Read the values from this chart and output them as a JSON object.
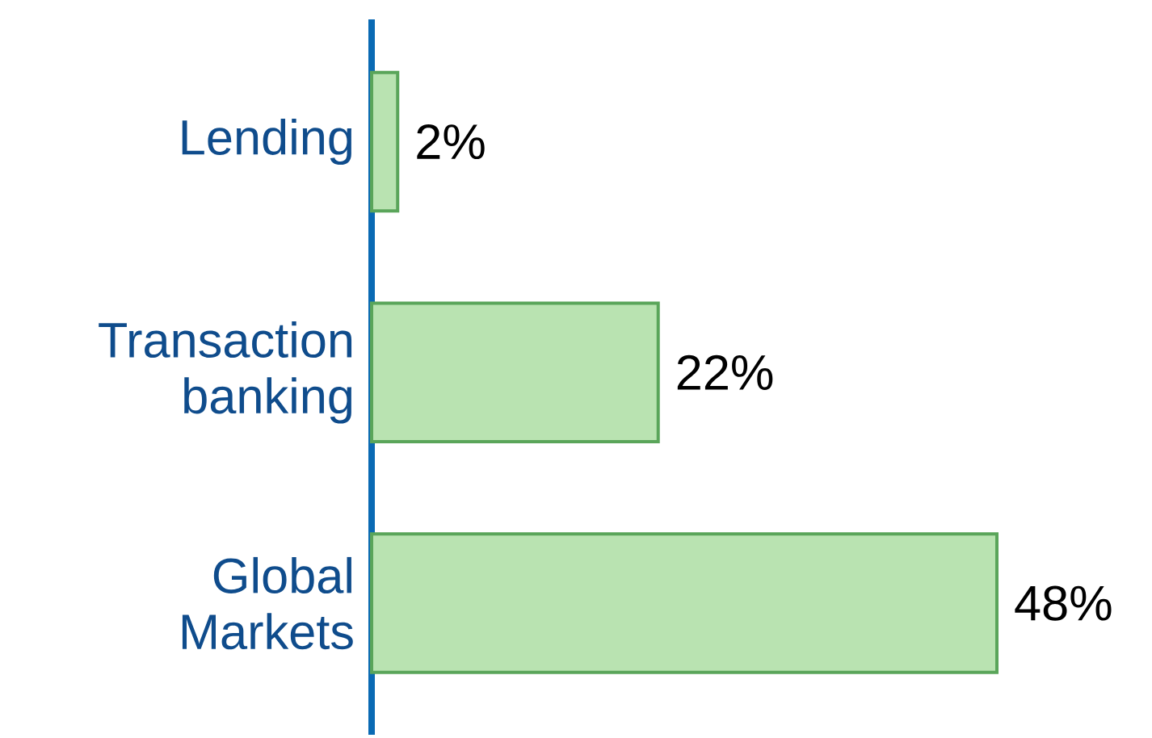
{
  "chart_data": {
    "type": "bar",
    "orientation": "horizontal",
    "categories": [
      "Lending",
      "Transaction banking",
      "Global Markets"
    ],
    "values": [
      2,
      22,
      48
    ],
    "value_labels": [
      "2%",
      "22%",
      "48%"
    ],
    "color": "#b9e3b1"
  }
}
